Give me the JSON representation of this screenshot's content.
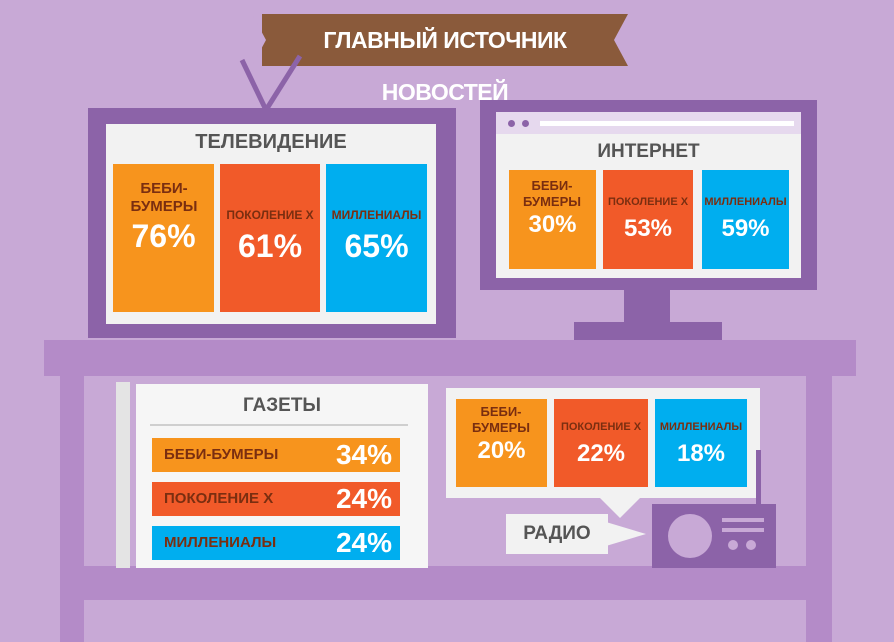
{
  "title": "ГЛАВНЫЙ ИСТОЧНИК НОВОСТЕЙ",
  "colors": {
    "background": "#c8a9d6",
    "device": "#8c63a8",
    "orange": "#f7941d",
    "red": "#f15a29",
    "blue": "#00aeef",
    "banner": "#8a5a3b"
  },
  "tv": {
    "title": "ТЕЛЕВИДЕНИЕ",
    "groups": [
      {
        "label": "БЕБИ-БУМЕРЫ",
        "value": "76%"
      },
      {
        "label": "ПОКОЛЕНИЕ Х",
        "value": "61%"
      },
      {
        "label": "МИЛЛЕНИАЛЫ",
        "value": "65%"
      }
    ]
  },
  "internet": {
    "title": "ИНТЕРНЕТ",
    "groups": [
      {
        "label": "БЕБИ-БУМЕРЫ",
        "value": "30%"
      },
      {
        "label": "ПОКОЛЕНИЕ Х",
        "value": "53%"
      },
      {
        "label": "МИЛЛЕНИАЛЫ",
        "value": "59%"
      }
    ]
  },
  "newspapers": {
    "title": "ГАЗЕТЫ",
    "rows": [
      {
        "label": "БЕБИ-БУМЕРЫ",
        "value": "34%"
      },
      {
        "label": "ПОКОЛЕНИЕ Х",
        "value": "24%"
      },
      {
        "label": "МИЛЛЕНИАЛЫ",
        "value": "24%"
      }
    ]
  },
  "radio": {
    "title": "РАДИО",
    "groups": [
      {
        "label": "БЕБИ-БУМЕРЫ",
        "value": "20%"
      },
      {
        "label": "ПОКОЛЕНИЕ Х",
        "value": "22%"
      },
      {
        "label": "МИЛЛЕНИАЛЫ",
        "value": "18%"
      }
    ]
  }
}
